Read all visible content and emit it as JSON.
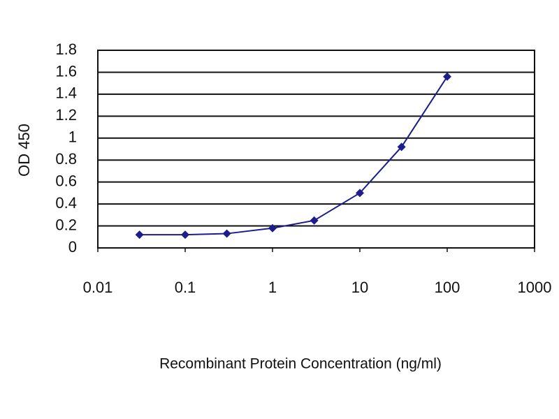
{
  "chart_data": {
    "type": "line",
    "xlabel": "Recombinant Protein Concentration (ng/ml)",
    "ylabel": "OD 450",
    "x": [
      0.03,
      0.1,
      0.3,
      1,
      3,
      10,
      30,
      100
    ],
    "series": [
      {
        "color": "#1c1c8c",
        "values": [
          0.12,
          0.12,
          0.13,
          0.18,
          0.25,
          0.5,
          0.92,
          1.56
        ]
      }
    ],
    "xscale": "log",
    "xlim": [
      0.01,
      1000
    ],
    "xticks": [
      0.01,
      0.1,
      1,
      10,
      100,
      1000
    ],
    "ylim": [
      0,
      1.8
    ],
    "yticks": [
      0,
      0.2,
      0.4,
      0.6,
      0.8,
      1,
      1.2,
      1.4,
      1.6,
      1.8
    ],
    "grid": true
  }
}
